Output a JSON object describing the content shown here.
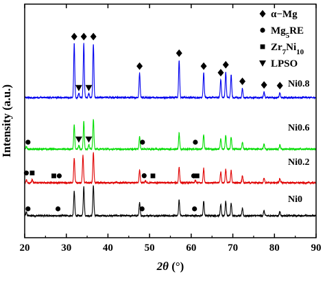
{
  "chart_data": {
    "type": "line",
    "title": "",
    "xlabel_symbol": "2θ",
    "xlabel_unit": "(°)",
    "ylabel": "Intensity (a.u.)",
    "xlim": [
      20,
      90
    ],
    "x_ticks": [
      20,
      30,
      40,
      50,
      60,
      70,
      80,
      90
    ],
    "y_ticks_shown": false,
    "grid": false,
    "legend_position": "top-right",
    "legend": [
      {
        "marker": "diamond",
        "text": "α−Mg",
        "sub": "",
        "rest": ""
      },
      {
        "marker": "circle",
        "text": "Mg",
        "sub": "5",
        "rest": "RE"
      },
      {
        "marker": "square",
        "text": "Zr",
        "sub": "7",
        "rest": "Ni",
        "sub2": "10"
      },
      {
        "marker": "triangle-down",
        "text": "LPSO",
        "sub": "",
        "rest": ""
      }
    ],
    "series": [
      {
        "name": "Ni0",
        "color": "#000000",
        "peaks": [
          [
            20.4,
            0.5
          ],
          [
            31.9,
            3.4
          ],
          [
            34.2,
            4.0
          ],
          [
            36.5,
            4.2
          ],
          [
            47.6,
            1.8
          ],
          [
            57.1,
            2.2
          ],
          [
            63.0,
            2.0
          ],
          [
            67.1,
            1.6
          ],
          [
            68.3,
            2.0
          ],
          [
            69.6,
            1.8
          ],
          [
            72.3,
            1.0
          ],
          [
            77.5,
            0.7
          ],
          [
            81.3,
            0.6
          ]
        ],
        "markers": [
          {
            "shape": "circle",
            "x": 20.8
          },
          {
            "shape": "circle",
            "x": 28.0
          },
          {
            "shape": "circle",
            "x": 48.2
          },
          {
            "shape": "circle",
            "x": 60.8
          }
        ]
      },
      {
        "name": "Ni0.2",
        "color": "#e00000",
        "peaks": [
          [
            20.4,
            0.4
          ],
          [
            21.8,
            0.4
          ],
          [
            31.9,
            3.4
          ],
          [
            34.0,
            3.8
          ],
          [
            36.5,
            4.2
          ],
          [
            47.6,
            1.7
          ],
          [
            49.0,
            0.3
          ],
          [
            57.1,
            2.2
          ],
          [
            61.0,
            0.3
          ],
          [
            63.0,
            2.0
          ],
          [
            67.1,
            1.5
          ],
          [
            68.3,
            1.9
          ],
          [
            69.6,
            1.7
          ],
          [
            72.3,
            1.0
          ],
          [
            77.5,
            0.7
          ],
          [
            81.3,
            0.6
          ]
        ],
        "markers": [
          {
            "shape": "circle",
            "x": 20.4
          },
          {
            "shape": "square",
            "x": 21.8
          },
          {
            "shape": "square",
            "x": 27.0
          },
          {
            "shape": "circle",
            "x": 28.3
          },
          {
            "shape": "circle",
            "x": 48.7
          },
          {
            "shape": "square",
            "x": 50.8
          },
          {
            "shape": "circle",
            "x": 60.6
          },
          {
            "shape": "square",
            "x": 61.4
          }
        ]
      },
      {
        "name": "Ni0.6",
        "color": "#00dd00",
        "peaks": [
          [
            20.4,
            0.3
          ],
          [
            31.9,
            3.4
          ],
          [
            33.0,
            0.6
          ],
          [
            34.2,
            3.8
          ],
          [
            35.4,
            0.6
          ],
          [
            36.5,
            4.2
          ],
          [
            47.6,
            1.7
          ],
          [
            57.1,
            2.2
          ],
          [
            63.0,
            2.0
          ],
          [
            67.1,
            1.5
          ],
          [
            68.3,
            1.9
          ],
          [
            69.6,
            1.7
          ],
          [
            72.3,
            1.0
          ],
          [
            77.5,
            0.7
          ],
          [
            81.3,
            0.6
          ]
        ],
        "markers": [
          {
            "shape": "circle",
            "x": 20.8
          },
          {
            "shape": "triangle-down",
            "x": 33.0
          },
          {
            "shape": "triangle-down",
            "x": 35.4
          },
          {
            "shape": "circle",
            "x": 48.3
          },
          {
            "shape": "circle",
            "x": 61.0
          }
        ]
      },
      {
        "name": "Ni0.8",
        "color": "#0000ee",
        "peaks": [
          [
            31.9,
            7.5
          ],
          [
            33.0,
            0.6
          ],
          [
            34.2,
            7.5
          ],
          [
            35.4,
            0.6
          ],
          [
            36.5,
            7.5
          ],
          [
            47.6,
            3.4
          ],
          [
            57.1,
            5.2
          ],
          [
            63.0,
            3.4
          ],
          [
            67.1,
            2.5
          ],
          [
            68.3,
            3.6
          ],
          [
            69.6,
            3.2
          ],
          [
            72.3,
            1.3
          ],
          [
            77.5,
            0.8
          ],
          [
            81.3,
            0.7
          ]
        ],
        "markers": [
          {
            "shape": "triangle-down",
            "x": 33.0
          },
          {
            "shape": "triangle-down",
            "x": 35.4
          },
          {
            "shape": "diamond",
            "x": 31.9
          },
          {
            "shape": "diamond",
            "x": 34.2
          },
          {
            "shape": "diamond",
            "x": 36.5
          },
          {
            "shape": "diamond",
            "x": 47.6
          },
          {
            "shape": "diamond",
            "x": 57.1
          },
          {
            "shape": "diamond",
            "x": 63.0
          },
          {
            "shape": "diamond",
            "x": 67.1
          },
          {
            "shape": "diamond",
            "x": 68.3
          },
          {
            "shape": "diamond",
            "x": 72.3
          },
          {
            "shape": "diamond",
            "x": 77.5
          },
          {
            "shape": "diamond",
            "x": 81.3
          }
        ]
      }
    ]
  }
}
